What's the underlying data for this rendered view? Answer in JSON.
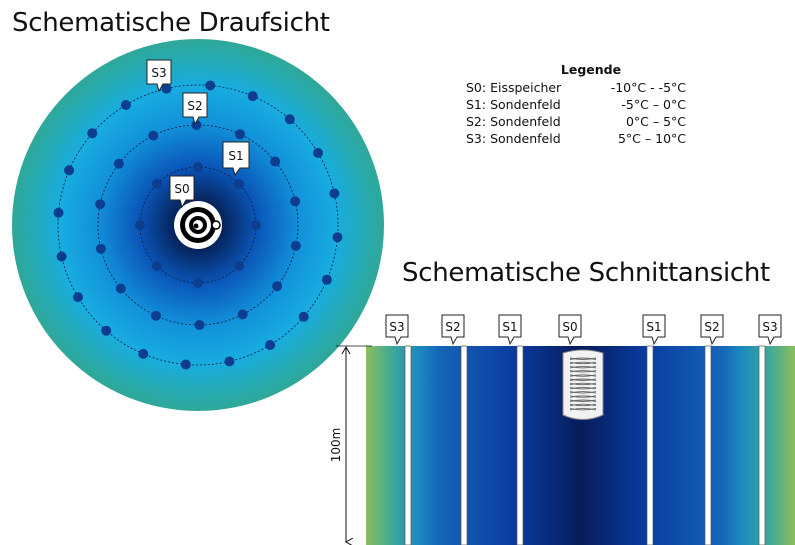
{
  "plan_view": {
    "title": "Schematische Draufsicht",
    "ring_labels": {
      "s0": "S0",
      "s1": "S1",
      "s2": "S2",
      "s3": "S3"
    }
  },
  "section_view": {
    "title": "Schematische Schnittansicht",
    "probe_labels": [
      "S3",
      "S2",
      "S1",
      "S0",
      "S1",
      "S2",
      "S3"
    ],
    "depth_label": "100m"
  },
  "legend": {
    "title": "Legende",
    "entries": [
      {
        "label": "S0: Eisspeicher",
        "range": "-10°C - -5°C"
      },
      {
        "label": "S1: Sondenfeld",
        "range": "-5°C – 0°C"
      },
      {
        "label": "S2: Sondenfeld",
        "range": "0°C – 5°C"
      },
      {
        "label": "S3: Sondenfeld",
        "range": "5°C – 10°C"
      }
    ]
  },
  "colors": {
    "ice_core": "#020b2e",
    "deep_blue": "#0a3ea8",
    "mid_blue": "#1090dc",
    "cyan": "#18aee0",
    "teal": "#2aa8a0",
    "green": "#7db85e",
    "probe_dot": "#0d3d8f"
  }
}
